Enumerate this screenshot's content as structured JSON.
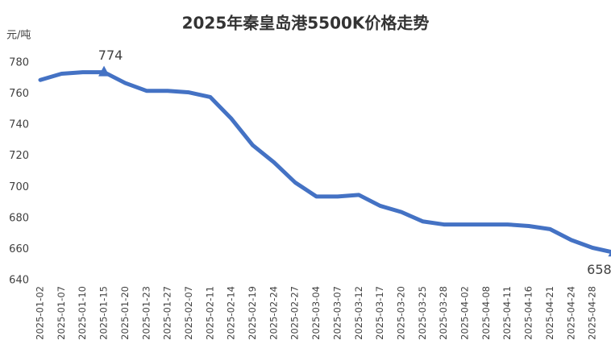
{
  "chart_data": {
    "type": "line",
    "title": "2025年秦皇岛港5500K价格走势",
    "y_label": "元/吨",
    "categories": [
      "2025-01-02",
      "2025-01-07",
      "2025-01-10",
      "2025-01-15",
      "2025-01-20",
      "2025-01-23",
      "2025-01-27",
      "2025-02-07",
      "2025-02-11",
      "2025-02-14",
      "2025-02-19",
      "2025-02-24",
      "2025-02-27",
      "2025-03-04",
      "2025-03-07",
      "2025-03-12",
      "2025-03-17",
      "2025-03-20",
      "2025-03-25",
      "2025-03-28",
      "2025-04-02",
      "2025-04-08",
      "2025-04-11",
      "2025-04-16",
      "2025-04-21",
      "2025-04-24",
      "2025-04-28",
      null
    ],
    "series": [
      {
        "name": "5500K",
        "color": "#4472c4",
        "values": [
          769,
          773,
          774,
          774,
          767,
          762,
          762,
          761,
          758,
          744,
          727,
          716,
          703,
          694,
          694,
          695,
          688,
          684,
          678,
          676,
          676,
          676,
          676,
          675,
          673,
          666,
          661,
          658
        ],
        "value_labels": [
          null,
          null,
          null,
          "774",
          null,
          null,
          null,
          null,
          null,
          null,
          null,
          null,
          null,
          null,
          null,
          null,
          null,
          null,
          null,
          null,
          null,
          null,
          null,
          null,
          null,
          null,
          null,
          "658"
        ]
      }
    ],
    "ylim": [
      640,
      780
    ],
    "yticks": [
      640,
      660,
      680,
      700,
      720,
      740,
      760,
      780
    ],
    "grid": false
  }
}
